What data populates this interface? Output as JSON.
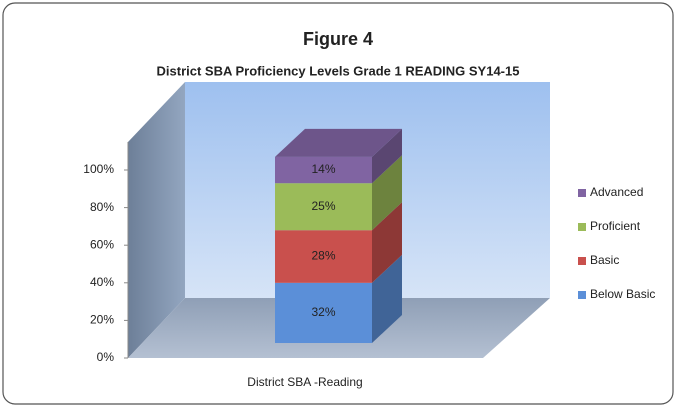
{
  "chart_data": {
    "type": "bar3d_stacked",
    "title": "Figure 4",
    "subtitle": "District SBA Proficiency Levels Grade 1  READING  SY14-15",
    "categories": [
      "District SBA -Reading"
    ],
    "series": [
      {
        "name": "Below Basic",
        "color": "#5b8fd8",
        "values": [
          32
        ],
        "value_labels": [
          "32%"
        ]
      },
      {
        "name": "Basic",
        "color": "#c9504d",
        "values": [
          28
        ],
        "value_labels": [
          "28%"
        ]
      },
      {
        "name": "Proficient",
        "color": "#9bbb59",
        "values": [
          25
        ],
        "value_labels": [
          "25%"
        ]
      },
      {
        "name": "Advanced",
        "color": "#8064a2",
        "values": [
          14
        ],
        "value_labels": [
          "14%"
        ]
      }
    ],
    "ylim": [
      0,
      100
    ],
    "yticks": [
      {
        "value": 0,
        "label": "0%"
      },
      {
        "value": 20,
        "label": "20%"
      },
      {
        "value": 40,
        "label": "40%"
      },
      {
        "value": 60,
        "label": "60%"
      },
      {
        "value": 80,
        "label": "80%"
      },
      {
        "value": 100,
        "label": "100%"
      }
    ],
    "legend": "right"
  }
}
